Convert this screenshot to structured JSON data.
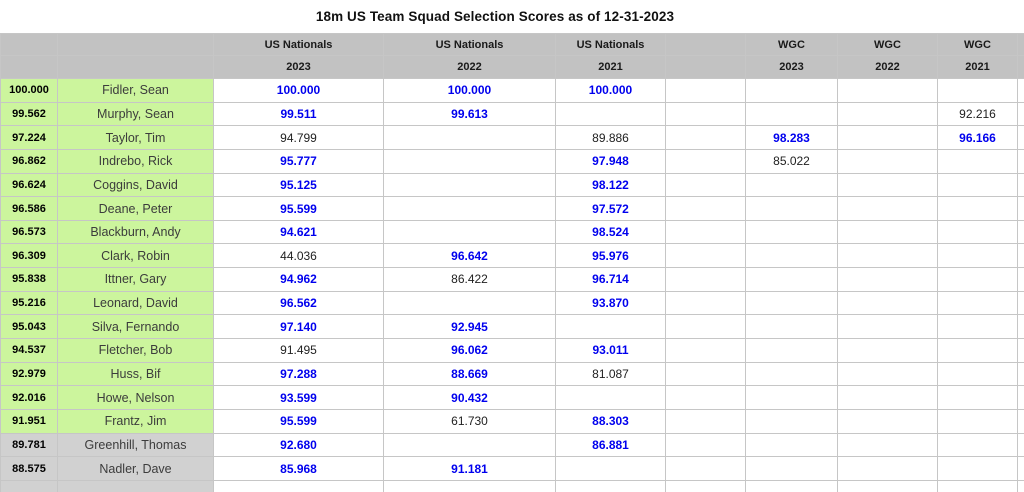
{
  "title": "18m US Team Squad Selection Scores as of 12-31-2023",
  "colors": {
    "green_highlight": "#ccf59d",
    "grey_row": "#d1d1d1",
    "grey_header": "#c2c2c2",
    "score_blue": "#0000ee",
    "score_black": "#212121"
  },
  "table": {
    "column_groups": [
      {
        "label": "US Nationals",
        "year": "2023"
      },
      {
        "label": "US Nationals",
        "year": "2022"
      },
      {
        "label": "US Nationals",
        "year": "2021"
      },
      {
        "label": "",
        "year": ""
      },
      {
        "label": "WGC",
        "year": "2023"
      },
      {
        "label": "WGC",
        "year": "2022"
      },
      {
        "label": "WGC",
        "year": "2021"
      }
    ],
    "rows": [
      {
        "total": "100.000",
        "name": "Fidler, Sean",
        "highlight": "green",
        "cells": [
          [
            "100.000",
            "blue"
          ],
          [
            "100.000",
            "blue"
          ],
          [
            "100.000",
            "blue"
          ],
          null,
          null,
          null,
          null
        ]
      },
      {
        "total": "99.562",
        "name": "Murphy, Sean",
        "highlight": "green",
        "cells": [
          [
            "99.511",
            "blue"
          ],
          [
            "99.613",
            "blue"
          ],
          null,
          null,
          null,
          null,
          [
            "92.216",
            "black"
          ]
        ]
      },
      {
        "total": "97.224",
        "name": "Taylor, Tim",
        "highlight": "green",
        "cells": [
          [
            "94.799",
            "black"
          ],
          null,
          [
            "89.886",
            "black"
          ],
          null,
          [
            "98.283",
            "blue"
          ],
          null,
          [
            "96.166",
            "blue"
          ]
        ]
      },
      {
        "total": "96.862",
        "name": "Indrebo, Rick",
        "highlight": "green",
        "cells": [
          [
            "95.777",
            "blue"
          ],
          null,
          [
            "97.948",
            "blue"
          ],
          null,
          [
            "85.022",
            "black"
          ],
          null,
          null
        ]
      },
      {
        "total": "96.624",
        "name": "Coggins, David",
        "highlight": "green",
        "cells": [
          [
            "95.125",
            "blue"
          ],
          null,
          [
            "98.122",
            "blue"
          ],
          null,
          null,
          null,
          null
        ]
      },
      {
        "total": "96.586",
        "name": "Deane, Peter",
        "highlight": "green",
        "cells": [
          [
            "95.599",
            "blue"
          ],
          null,
          [
            "97.572",
            "blue"
          ],
          null,
          null,
          null,
          null
        ]
      },
      {
        "total": "96.573",
        "name": "Blackburn, Andy",
        "highlight": "green",
        "cells": [
          [
            "94.621",
            "blue"
          ],
          null,
          [
            "98.524",
            "blue"
          ],
          null,
          null,
          null,
          null
        ]
      },
      {
        "total": "96.309",
        "name": "Clark, Robin",
        "highlight": "green",
        "cells": [
          [
            "44.036",
            "black"
          ],
          [
            "96.642",
            "blue"
          ],
          [
            "95.976",
            "blue"
          ],
          null,
          null,
          null,
          null
        ]
      },
      {
        "total": "95.838",
        "name": "Ittner, Gary",
        "highlight": "green",
        "cells": [
          [
            "94.962",
            "blue"
          ],
          [
            "86.422",
            "black"
          ],
          [
            "96.714",
            "blue"
          ],
          null,
          null,
          null,
          null
        ]
      },
      {
        "total": "95.216",
        "name": "Leonard, David",
        "highlight": "green",
        "cells": [
          [
            "96.562",
            "blue"
          ],
          null,
          [
            "93.870",
            "blue"
          ],
          null,
          null,
          null,
          null
        ]
      },
      {
        "total": "95.043",
        "name": "Silva, Fernando",
        "highlight": "green",
        "cells": [
          [
            "97.140",
            "blue"
          ],
          [
            "92.945",
            "blue"
          ],
          null,
          null,
          null,
          null,
          null
        ]
      },
      {
        "total": "94.537",
        "name": "Fletcher, Bob",
        "highlight": "green",
        "cells": [
          [
            "91.495",
            "black"
          ],
          [
            "96.062",
            "blue"
          ],
          [
            "93.011",
            "blue"
          ],
          null,
          null,
          null,
          null
        ]
      },
      {
        "total": "92.979",
        "name": "Huss, Bif",
        "highlight": "green",
        "cells": [
          [
            "97.288",
            "blue"
          ],
          [
            "88.669",
            "blue"
          ],
          [
            "81.087",
            "black"
          ],
          null,
          null,
          null,
          null
        ]
      },
      {
        "total": "92.016",
        "name": "Howe, Nelson",
        "highlight": "green",
        "cells": [
          [
            "93.599",
            "blue"
          ],
          [
            "90.432",
            "blue"
          ],
          null,
          null,
          null,
          null,
          null
        ]
      },
      {
        "total": "91.951",
        "name": "Frantz, Jim",
        "highlight": "green",
        "cells": [
          [
            "95.599",
            "blue"
          ],
          [
            "61.730",
            "black"
          ],
          [
            "88.303",
            "blue"
          ],
          null,
          null,
          null,
          null
        ]
      },
      {
        "total": "89.781",
        "name": "Greenhill, Thomas",
        "highlight": "grey",
        "cells": [
          [
            "92.680",
            "blue"
          ],
          null,
          [
            "86.881",
            "blue"
          ],
          null,
          null,
          null,
          null
        ]
      },
      {
        "total": "88.575",
        "name": "Nadler, Dave",
        "highlight": "grey",
        "cells": [
          [
            "85.968",
            "blue"
          ],
          [
            "91.181",
            "blue"
          ],
          null,
          null,
          null,
          null,
          null
        ]
      },
      {
        "total": "",
        "name": "",
        "highlight": "grey",
        "cells": [
          null,
          null,
          null,
          null,
          null,
          null,
          null
        ]
      }
    ]
  }
}
